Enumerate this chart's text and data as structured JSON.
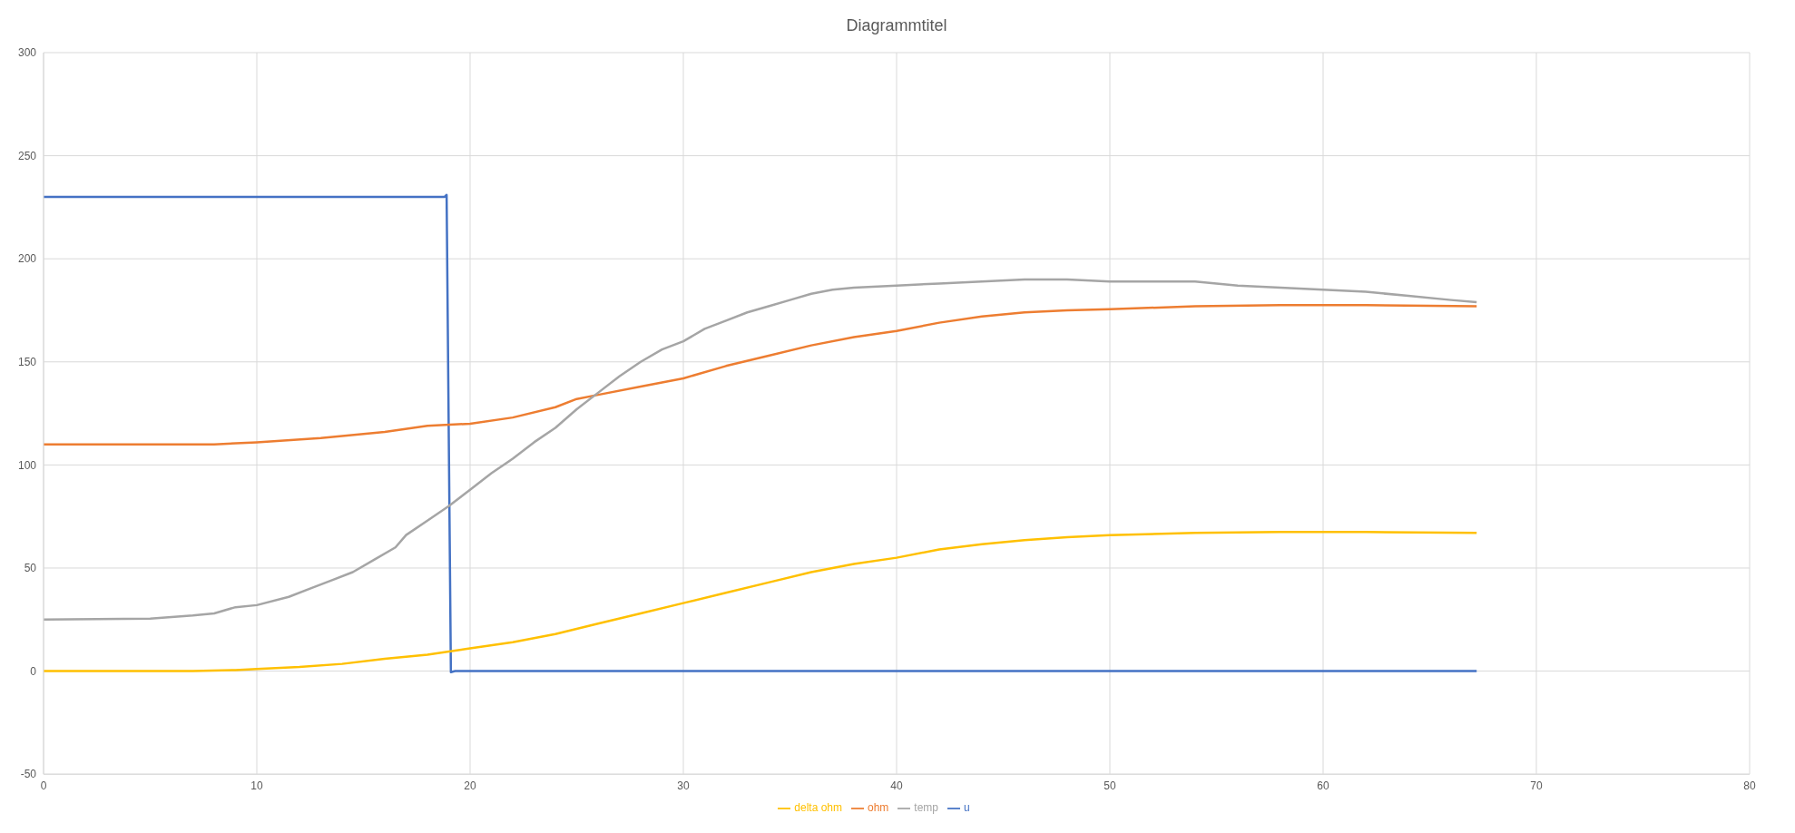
{
  "chart_data": {
    "type": "line",
    "title": "Diagrammtitel",
    "xlim": [
      0,
      80
    ],
    "xticks": [
      0,
      10,
      20,
      30,
      40,
      50,
      60,
      70,
      80
    ],
    "ylim": [
      -50,
      300
    ],
    "yticks": [
      -50,
      0,
      50,
      100,
      150,
      200,
      250,
      300
    ],
    "grid": true,
    "legend": "bottom",
    "marker": "none",
    "line_style": "solid",
    "series": [
      {
        "name": "u",
        "color": "#4472c4",
        "x": [
          0,
          18.8,
          18.9,
          19.1,
          19.3,
          67.2
        ],
        "values": [
          230,
          230,
          231,
          -0.5,
          0,
          0
        ]
      },
      {
        "name": "ohm",
        "color": "#ed7d31",
        "x": [
          0,
          8,
          10,
          13,
          16,
          18,
          20,
          22,
          24,
          25,
          26,
          28,
          30,
          32,
          34,
          36,
          38,
          40,
          42,
          44,
          46,
          48,
          50,
          54,
          58,
          62,
          67.2
        ],
        "values": [
          110,
          110,
          111,
          113,
          116,
          119,
          120,
          123,
          128,
          132,
          134,
          138,
          142,
          148,
          153,
          158,
          162,
          165,
          169,
          172,
          174,
          175,
          175.5,
          177,
          177.5,
          177.5,
          177
        ]
      },
      {
        "name": "temp",
        "color": "#a5a5a5",
        "x": [
          0,
          5,
          7,
          8,
          9,
          10,
          11.5,
          12.5,
          13.5,
          14.5,
          15.5,
          16.5,
          17,
          18,
          19,
          20,
          21,
          22,
          23,
          24,
          25,
          26,
          27,
          28,
          29,
          30,
          31,
          32,
          33,
          34,
          35,
          36,
          37,
          38,
          40,
          42,
          44,
          46,
          48,
          50,
          54,
          56,
          58,
          60,
          62,
          64,
          66,
          67.2
        ],
        "values": [
          25,
          25.5,
          27,
          28,
          31,
          32,
          36,
          40,
          44,
          48,
          54,
          60,
          66,
          73,
          80,
          88,
          96,
          103,
          111,
          118,
          127,
          135,
          143,
          150,
          156,
          160,
          166,
          170,
          174,
          177,
          180,
          183,
          185,
          186,
          187,
          188,
          189,
          190,
          190,
          189,
          189,
          187,
          186,
          185,
          184,
          182,
          180,
          179
        ]
      },
      {
        "name": "delta ohm",
        "color": "#ffc000",
        "x": [
          0,
          7,
          9,
          10,
          12,
          14,
          16,
          18,
          20,
          22,
          24,
          26,
          28,
          30,
          32,
          34,
          36,
          38,
          40,
          42,
          44,
          46,
          48,
          50,
          54,
          58,
          62,
          67.2
        ],
        "values": [
          0,
          0,
          0.5,
          1,
          2,
          3.5,
          6,
          8,
          11,
          14,
          18,
          23,
          28,
          33,
          38,
          43,
          48,
          52,
          55,
          59,
          61.5,
          63.5,
          65,
          66,
          67,
          67.5,
          67.5,
          67
        ]
      }
    ]
  }
}
